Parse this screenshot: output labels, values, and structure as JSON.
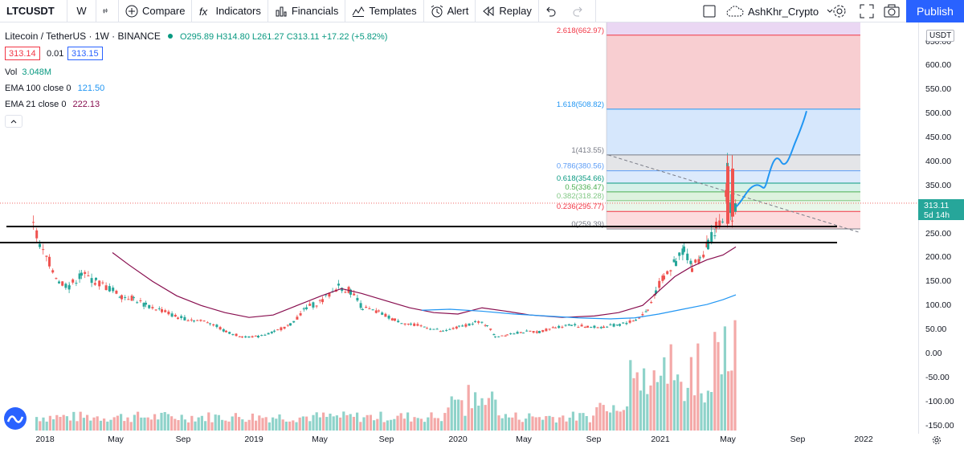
{
  "toolbar": {
    "symbol": "LTCUSDT",
    "interval": "W",
    "compare": "Compare",
    "indicators": "Indicators",
    "financials": "Financials",
    "templates": "Templates",
    "alert": "Alert",
    "replay": "Replay",
    "user": "AshKhr_Crypto",
    "publish": "Publish"
  },
  "legend": {
    "title": "Litecoin / TetherUS · 1W · BINANCE",
    "ohlc": "O295.89 H314.80 L261.27 C313.11 +17.22 (+5.82%)",
    "bid": "313.14",
    "spread": "0.01",
    "ask": "313.15",
    "vol_label": "Vol",
    "vol_value": "3.048M",
    "ema100_label": "EMA 100 close 0",
    "ema100_value": "121.50",
    "ema21_label": "EMA 21 close 0",
    "ema21_value": "222.13"
  },
  "price_axis": {
    "currency": "USDT",
    "ticks": [
      "650.00",
      "600.00",
      "550.00",
      "500.00",
      "450.00",
      "400.00",
      "350.00",
      "300.00",
      "250.00",
      "200.00",
      "150.00",
      "100.00",
      "50.00",
      "0.00",
      "-50.00",
      "-100.00",
      "-150.00"
    ],
    "last_price": "313.11",
    "countdown": "5d 14h"
  },
  "time_axis": {
    "ticks": [
      "2018",
      "May",
      "Sep",
      "2019",
      "May",
      "Sep",
      "2020",
      "May",
      "Sep",
      "2021",
      "May",
      "Sep",
      "2022"
    ]
  },
  "fib_levels": [
    {
      "label": "2.618(662.97)",
      "value": 662.97,
      "color": "#f23645"
    },
    {
      "label": "1.618(508.82)",
      "value": 508.82,
      "color": "#2196f3"
    },
    {
      "label": "1(413.55)",
      "value": 413.55,
      "color": "#787b86"
    },
    {
      "label": "0.786(380.56)",
      "value": 380.56,
      "color": "#5b9cf6"
    },
    {
      "label": "0.618(354.66)",
      "value": 354.66,
      "color": "#089981"
    },
    {
      "label": "0.5(336.47)",
      "value": 336.47,
      "color": "#4caf50"
    },
    {
      "label": "0.382(318.28)",
      "value": 318.28,
      "color": "#81c784"
    },
    {
      "label": "0.236(295.77)",
      "value": 295.77,
      "color": "#f23645"
    },
    {
      "label": "0(259.39)",
      "value": 259.39,
      "color": "#787b86"
    }
  ],
  "colors": {
    "up": "#26a69a",
    "down": "#ef5350",
    "ema21": "#880e4f",
    "ema100": "#2196f3",
    "accent": "#2962ff"
  }
}
